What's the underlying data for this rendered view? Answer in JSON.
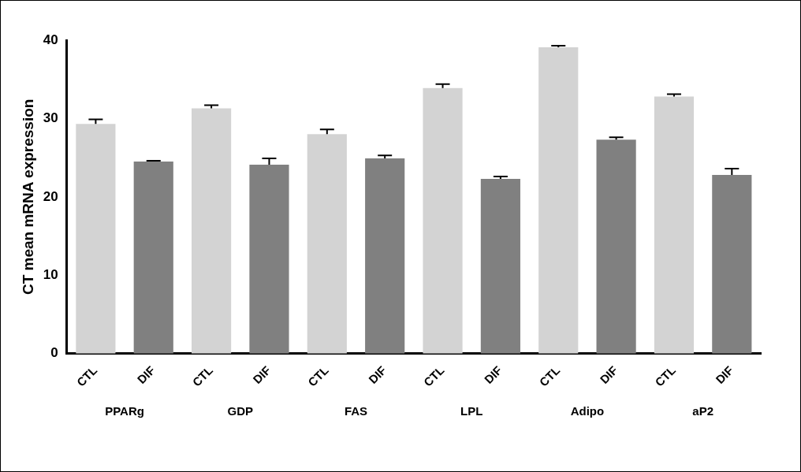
{
  "chart_data": {
    "type": "bar",
    "ylabel": "CT mean mRNA expression",
    "categories": [
      "CTL",
      "DIF",
      "CTL",
      "DIF",
      "CTL",
      "DIF",
      "CTL",
      "DIF",
      "CTL",
      "DIF",
      "CTL",
      "DIF"
    ],
    "values": [
      29.3,
      24.5,
      31.3,
      24.1,
      28.0,
      24.9,
      33.9,
      22.3,
      39.1,
      27.3,
      32.8,
      22.8
    ],
    "colors": [
      "#d3d3d3",
      "#808080",
      "#d3d3d3",
      "#808080",
      "#d3d3d3",
      "#808080",
      "#d3d3d3",
      "#808080",
      "#d3d3d3",
      "#808080",
      "#d3d3d3",
      "#808080"
    ],
    "errors": [
      [
        29.3,
        29.9
      ],
      [
        24.5,
        24.6
      ],
      [
        31.3,
        31.7
      ],
      [
        24.1,
        24.9
      ],
      [
        28.0,
        28.6
      ],
      [
        24.9,
        25.3
      ],
      [
        33.9,
        34.4
      ],
      [
        22.3,
        22.6
      ],
      [
        39.1,
        39.3
      ],
      [
        27.3,
        27.6
      ],
      [
        32.8,
        33.1
      ],
      [
        22.8,
        23.6
      ]
    ],
    "ylim": [
      0,
      40
    ],
    "yticks": [
      0,
      10,
      20,
      30,
      40
    ],
    "grid": false,
    "legend": false,
    "annotations": [
      "PPARg",
      "GDP",
      "FAS",
      "LPL",
      "Adipo",
      "aP2"
    ]
  }
}
